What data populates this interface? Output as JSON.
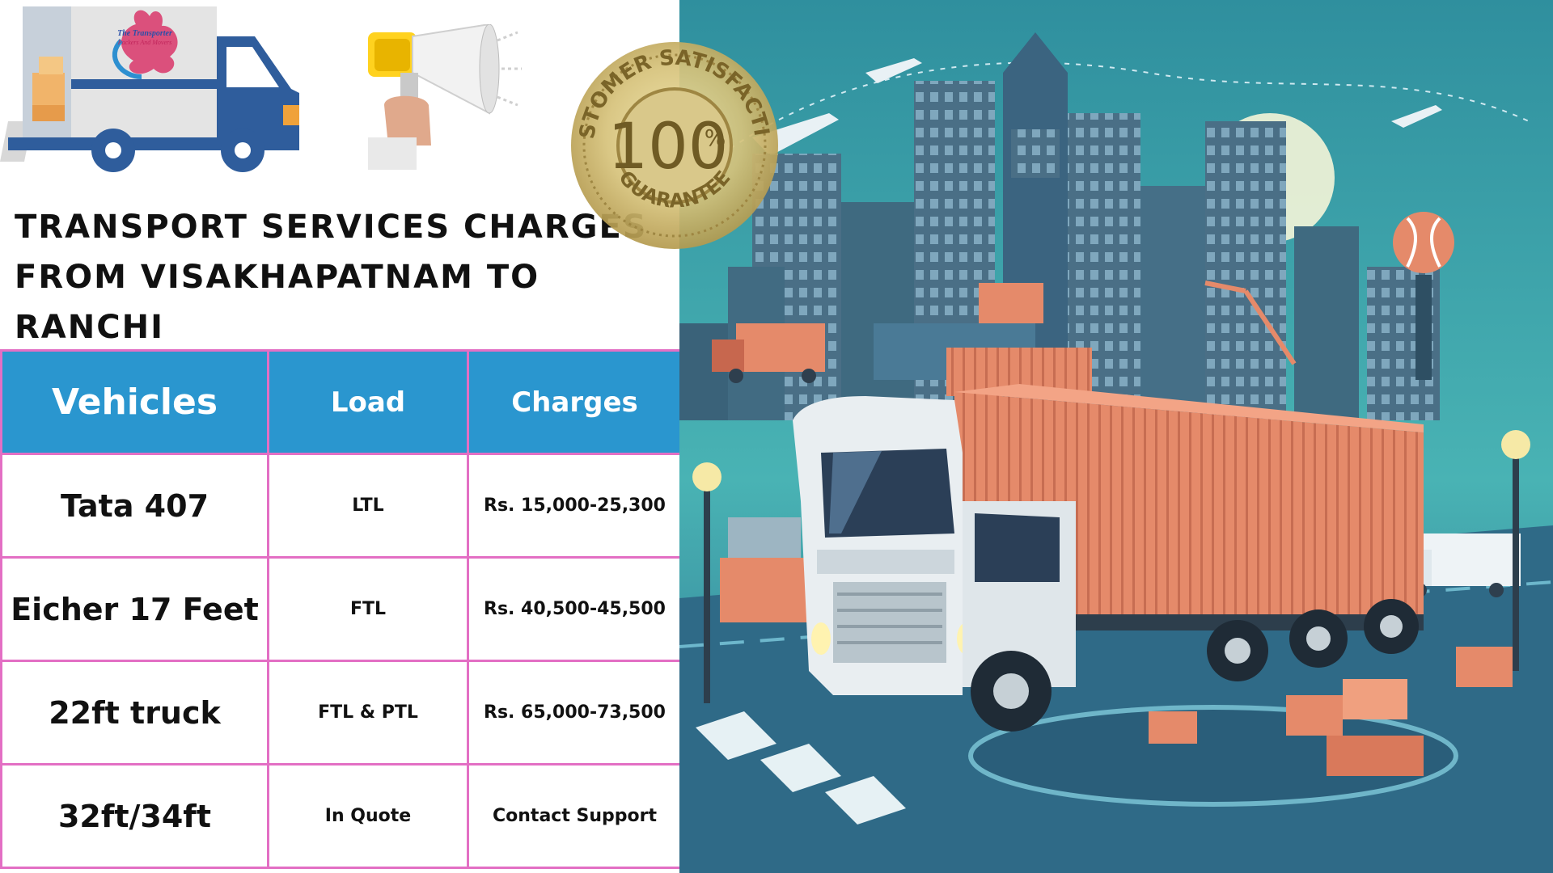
{
  "logo": {
    "line1": "The Transporter",
    "line2": "Packers And Movers"
  },
  "seal": {
    "top_text": "CUSTOMER SATISFACTION",
    "center_text": "100",
    "percent": "%",
    "bottom_text": "GUARANTEE"
  },
  "title": "Transport Services Charges from Visakhapatnam to Ranchi",
  "table": {
    "headers": [
      "Vehicles",
      "Load",
      "Charges"
    ],
    "rows": [
      [
        "Tata 407",
        "LTL",
        "Rs. 15,000-25,300"
      ],
      [
        "Eicher 17 Feet",
        "FTL",
        "Rs. 40,500-45,500"
      ],
      [
        "22ft truck",
        "FTL & PTL",
        "Rs. 65,000-73,500"
      ],
      [
        "32ft/34ft",
        "In Quote",
        "Contact Support"
      ]
    ]
  },
  "colors": {
    "header_bg": "#2a96cf",
    "grid": "#e36fc4",
    "container": "#e58a6a",
    "sky": "#3aa7b0"
  }
}
